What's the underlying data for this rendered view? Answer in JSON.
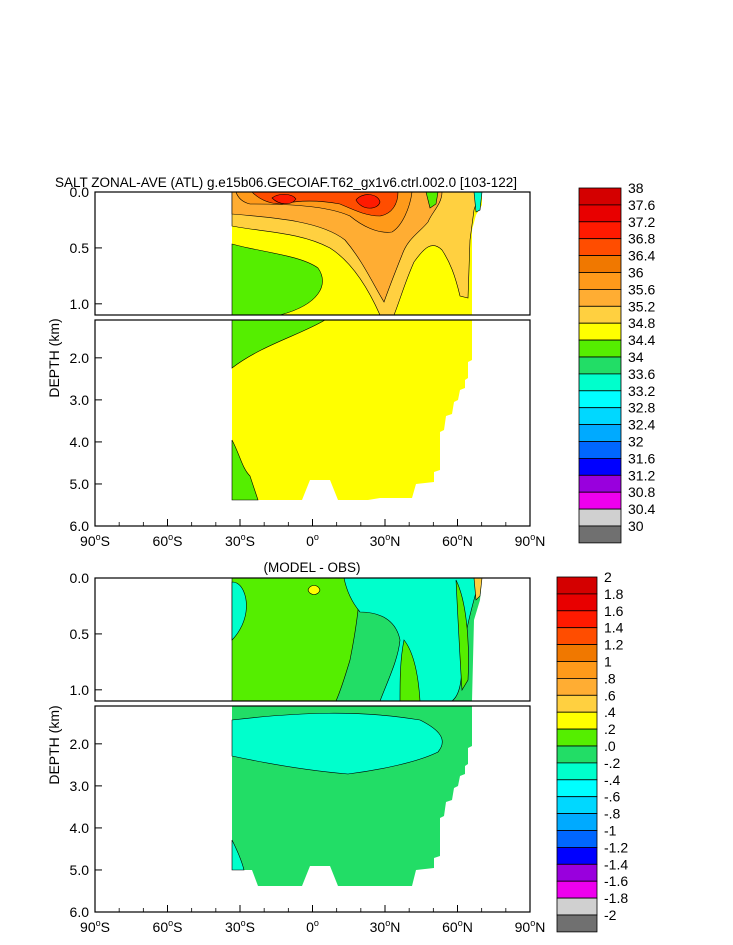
{
  "chart_data": [
    {
      "type": "heatmap",
      "title": "SALT ZONAL-AVE (ATL) g.e15b06.GECOIAF.T62_gx1v6.ctrl.002.0 [103-122]",
      "xlabel": "",
      "ylabel": "DEPTH (km)",
      "xlim": [
        -90,
        90
      ],
      "x_tick_values": [
        -90,
        -60,
        -30,
        0,
        30,
        60,
        90
      ],
      "x_ticks": [
        {
          "deg": "90",
          "sup": "o",
          "hem": "S"
        },
        {
          "deg": "60",
          "sup": "o",
          "hem": "S"
        },
        {
          "deg": "30",
          "sup": "o",
          "hem": "S"
        },
        {
          "deg": "0",
          "sup": "o",
          "hem": ""
        },
        {
          "deg": "30",
          "sup": "o",
          "hem": "N"
        },
        {
          "deg": "60",
          "sup": "o",
          "hem": "N"
        },
        {
          "deg": "90",
          "sup": "o",
          "hem": "N"
        }
      ],
      "ylim_upper": [
        0,
        1.1
      ],
      "ylim_lower": [
        1.1,
        6.0
      ],
      "y_ticks_upper": [
        "0.0",
        "0.5",
        "1.0"
      ],
      "y_ticks_upper_values": [
        0,
        0.5,
        1.0
      ],
      "y_ticks_lower": [
        "2.0",
        "3.0",
        "4.0",
        "5.0",
        "6.0"
      ],
      "y_ticks_lower_values": [
        2,
        3,
        4,
        5,
        6
      ],
      "colorbar": {
        "labels": [
          "38",
          "37.6",
          "37.2",
          "36.8",
          "36.4",
          "36",
          "35.6",
          "35.2",
          "34.8",
          "34.4",
          "34",
          "33.6",
          "33.2",
          "32.8",
          "32.4",
          "32",
          "31.6",
          "31.2",
          "30.8",
          "30.4",
          "30"
        ],
        "colors": [
          "#d40000",
          "#e80000",
          "#ff1a00",
          "#ff4d00",
          "#f07800",
          "#ff9a1a",
          "#ffad33",
          "#ffd040",
          "#ffff00",
          "#55ee00",
          "#22dd66",
          "#00ffcc",
          "#00ffff",
          "#00d8ff",
          "#00aaff",
          "#0066ff",
          "#0000ff",
          "#9900dd",
          "#ee00ee",
          "#d0d0d0",
          "#707070"
        ]
      },
      "field_summary": {
        "ocean_extent_lat": [
          -34,
          66
        ],
        "surface_max_value": 37.6,
        "surface_max_lat": [
          -15,
          25
        ],
        "deep_value_range": [
          34.8,
          35.2
        ]
      }
    },
    {
      "type": "heatmap",
      "title": "(MODEL - OBS)",
      "xlabel": "",
      "ylabel": "DEPTH (km)",
      "xlim": [
        -90,
        90
      ],
      "x_tick_values": [
        -90,
        -60,
        -30,
        0,
        30,
        60,
        90
      ],
      "x_ticks": [
        {
          "deg": "90",
          "sup": "o",
          "hem": "S"
        },
        {
          "deg": "60",
          "sup": "o",
          "hem": "S"
        },
        {
          "deg": "30",
          "sup": "o",
          "hem": "S"
        },
        {
          "deg": "0",
          "sup": "o",
          "hem": ""
        },
        {
          "deg": "30",
          "sup": "o",
          "hem": "N"
        },
        {
          "deg": "60",
          "sup": "o",
          "hem": "N"
        },
        {
          "deg": "90",
          "sup": "o",
          "hem": "N"
        }
      ],
      "ylim_upper": [
        0,
        1.1
      ],
      "ylim_lower": [
        1.1,
        6.0
      ],
      "y_ticks_upper": [
        "0.0",
        "0.5",
        "1.0"
      ],
      "y_ticks_upper_values": [
        0,
        0.5,
        1.0
      ],
      "y_ticks_lower": [
        "2.0",
        "3.0",
        "4.0",
        "5.0",
        "6.0"
      ],
      "y_ticks_lower_values": [
        2,
        3,
        4,
        5,
        6
      ],
      "colorbar": {
        "labels": [
          "2",
          "1.8",
          "1.6",
          "1.4",
          "1.2",
          "1",
          ".8",
          ".6",
          ".4",
          ".2",
          ".0",
          "-.2",
          "-.4",
          "-.6",
          "-.8",
          "-1",
          "-1.2",
          "-1.4",
          "-1.6",
          "-1.8",
          "-2"
        ],
        "colors": [
          "#d40000",
          "#e80000",
          "#ff1a00",
          "#ff4d00",
          "#f07800",
          "#ff9a1a",
          "#ffad33",
          "#ffd040",
          "#ffff00",
          "#55ee00",
          "#22dd66",
          "#00ffcc",
          "#00ffff",
          "#00d8ff",
          "#00aaff",
          "#0066ff",
          "#0000ff",
          "#9900dd",
          "#ee00ee",
          "#d0d0d0",
          "#707070"
        ]
      },
      "field_summary": {
        "ocean_extent_lat": [
          -34,
          66
        ],
        "upper_ocean_value_range": [
          0.0,
          0.4
        ],
        "intermediate_value_range": [
          -0.2,
          0.0
        ],
        "deep_value_range": [
          0.0,
          0.2
        ]
      }
    }
  ]
}
